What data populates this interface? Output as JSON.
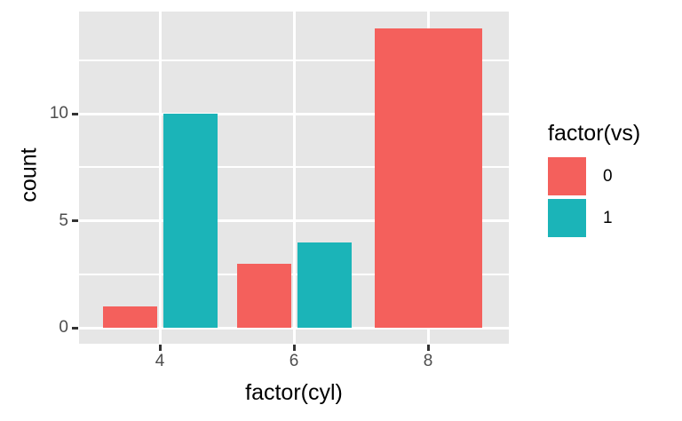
{
  "chart_data": {
    "type": "bar",
    "bar_layout": "dodge",
    "title": "",
    "xlabel": "factor(cyl)",
    "ylabel": "count",
    "legend_title": "factor(vs)",
    "legend_position": "right",
    "categories": [
      "4",
      "6",
      "8"
    ],
    "series": [
      {
        "name": "0",
        "color": "#F4605C",
        "values": [
          1,
          3,
          14
        ]
      },
      {
        "name": "1",
        "color": "#1BB4B8",
        "values": [
          10,
          4,
          0
        ]
      }
    ],
    "y_ticks": [
      0,
      5,
      10
    ],
    "y_minor": [
      2.5,
      7.5,
      12.5
    ],
    "ylim": [
      0,
      14.7
    ],
    "grid": "on",
    "panel_background": "#E6E6E6",
    "grid_color": "#FFFFFF",
    "tick_label_color": "#4D4D4D",
    "axis_title_color": "#000000",
    "tick_mark_color": "#333333"
  }
}
